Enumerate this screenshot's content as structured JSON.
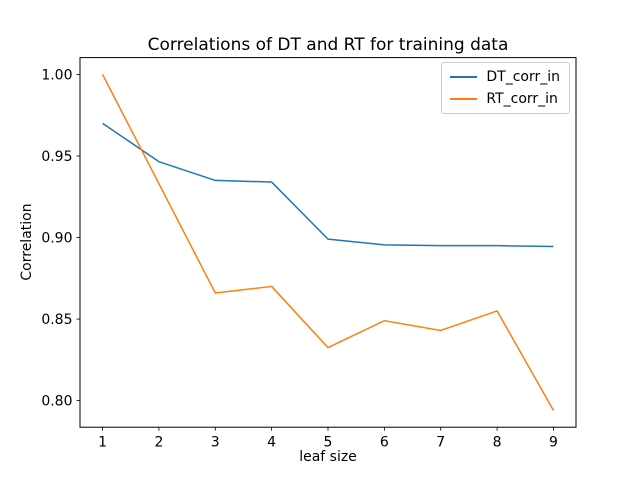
{
  "chart_data": {
    "type": "line",
    "title": "Correlations of DT and RT for training data",
    "xlabel": "leaf size",
    "ylabel": "Correlation",
    "x": [
      1,
      2,
      3,
      4,
      5,
      6,
      7,
      8,
      9
    ],
    "series": [
      {
        "name": "DT_corr_in",
        "color": "#1f77b4",
        "values": [
          0.97,
          0.9465,
          0.935,
          0.934,
          0.899,
          0.8955,
          0.895,
          0.895,
          0.8945
        ]
      },
      {
        "name": "RT_corr_in",
        "color": "#ff7f0e",
        "values": [
          1.0,
          0.933,
          0.866,
          0.87,
          0.8325,
          0.849,
          0.843,
          0.855,
          0.794
        ]
      }
    ],
    "xticks": [
      1,
      2,
      3,
      4,
      5,
      6,
      7,
      8,
      9
    ],
    "xtick_labels": [
      "1",
      "2",
      "3",
      "4",
      "5",
      "6",
      "7",
      "8",
      "9"
    ],
    "yticks": [
      0.8,
      0.85,
      0.9,
      0.95,
      1.0
    ],
    "ytick_labels": [
      "0.80",
      "0.85",
      "0.90",
      "0.95",
      "1.00"
    ],
    "xlim": [
      0.6,
      9.4
    ],
    "ylim": [
      0.7837,
      1.0103
    ],
    "grid": false,
    "legend_position": "upper right",
    "axis_color": "#000000",
    "background_color": "#ffffff"
  }
}
